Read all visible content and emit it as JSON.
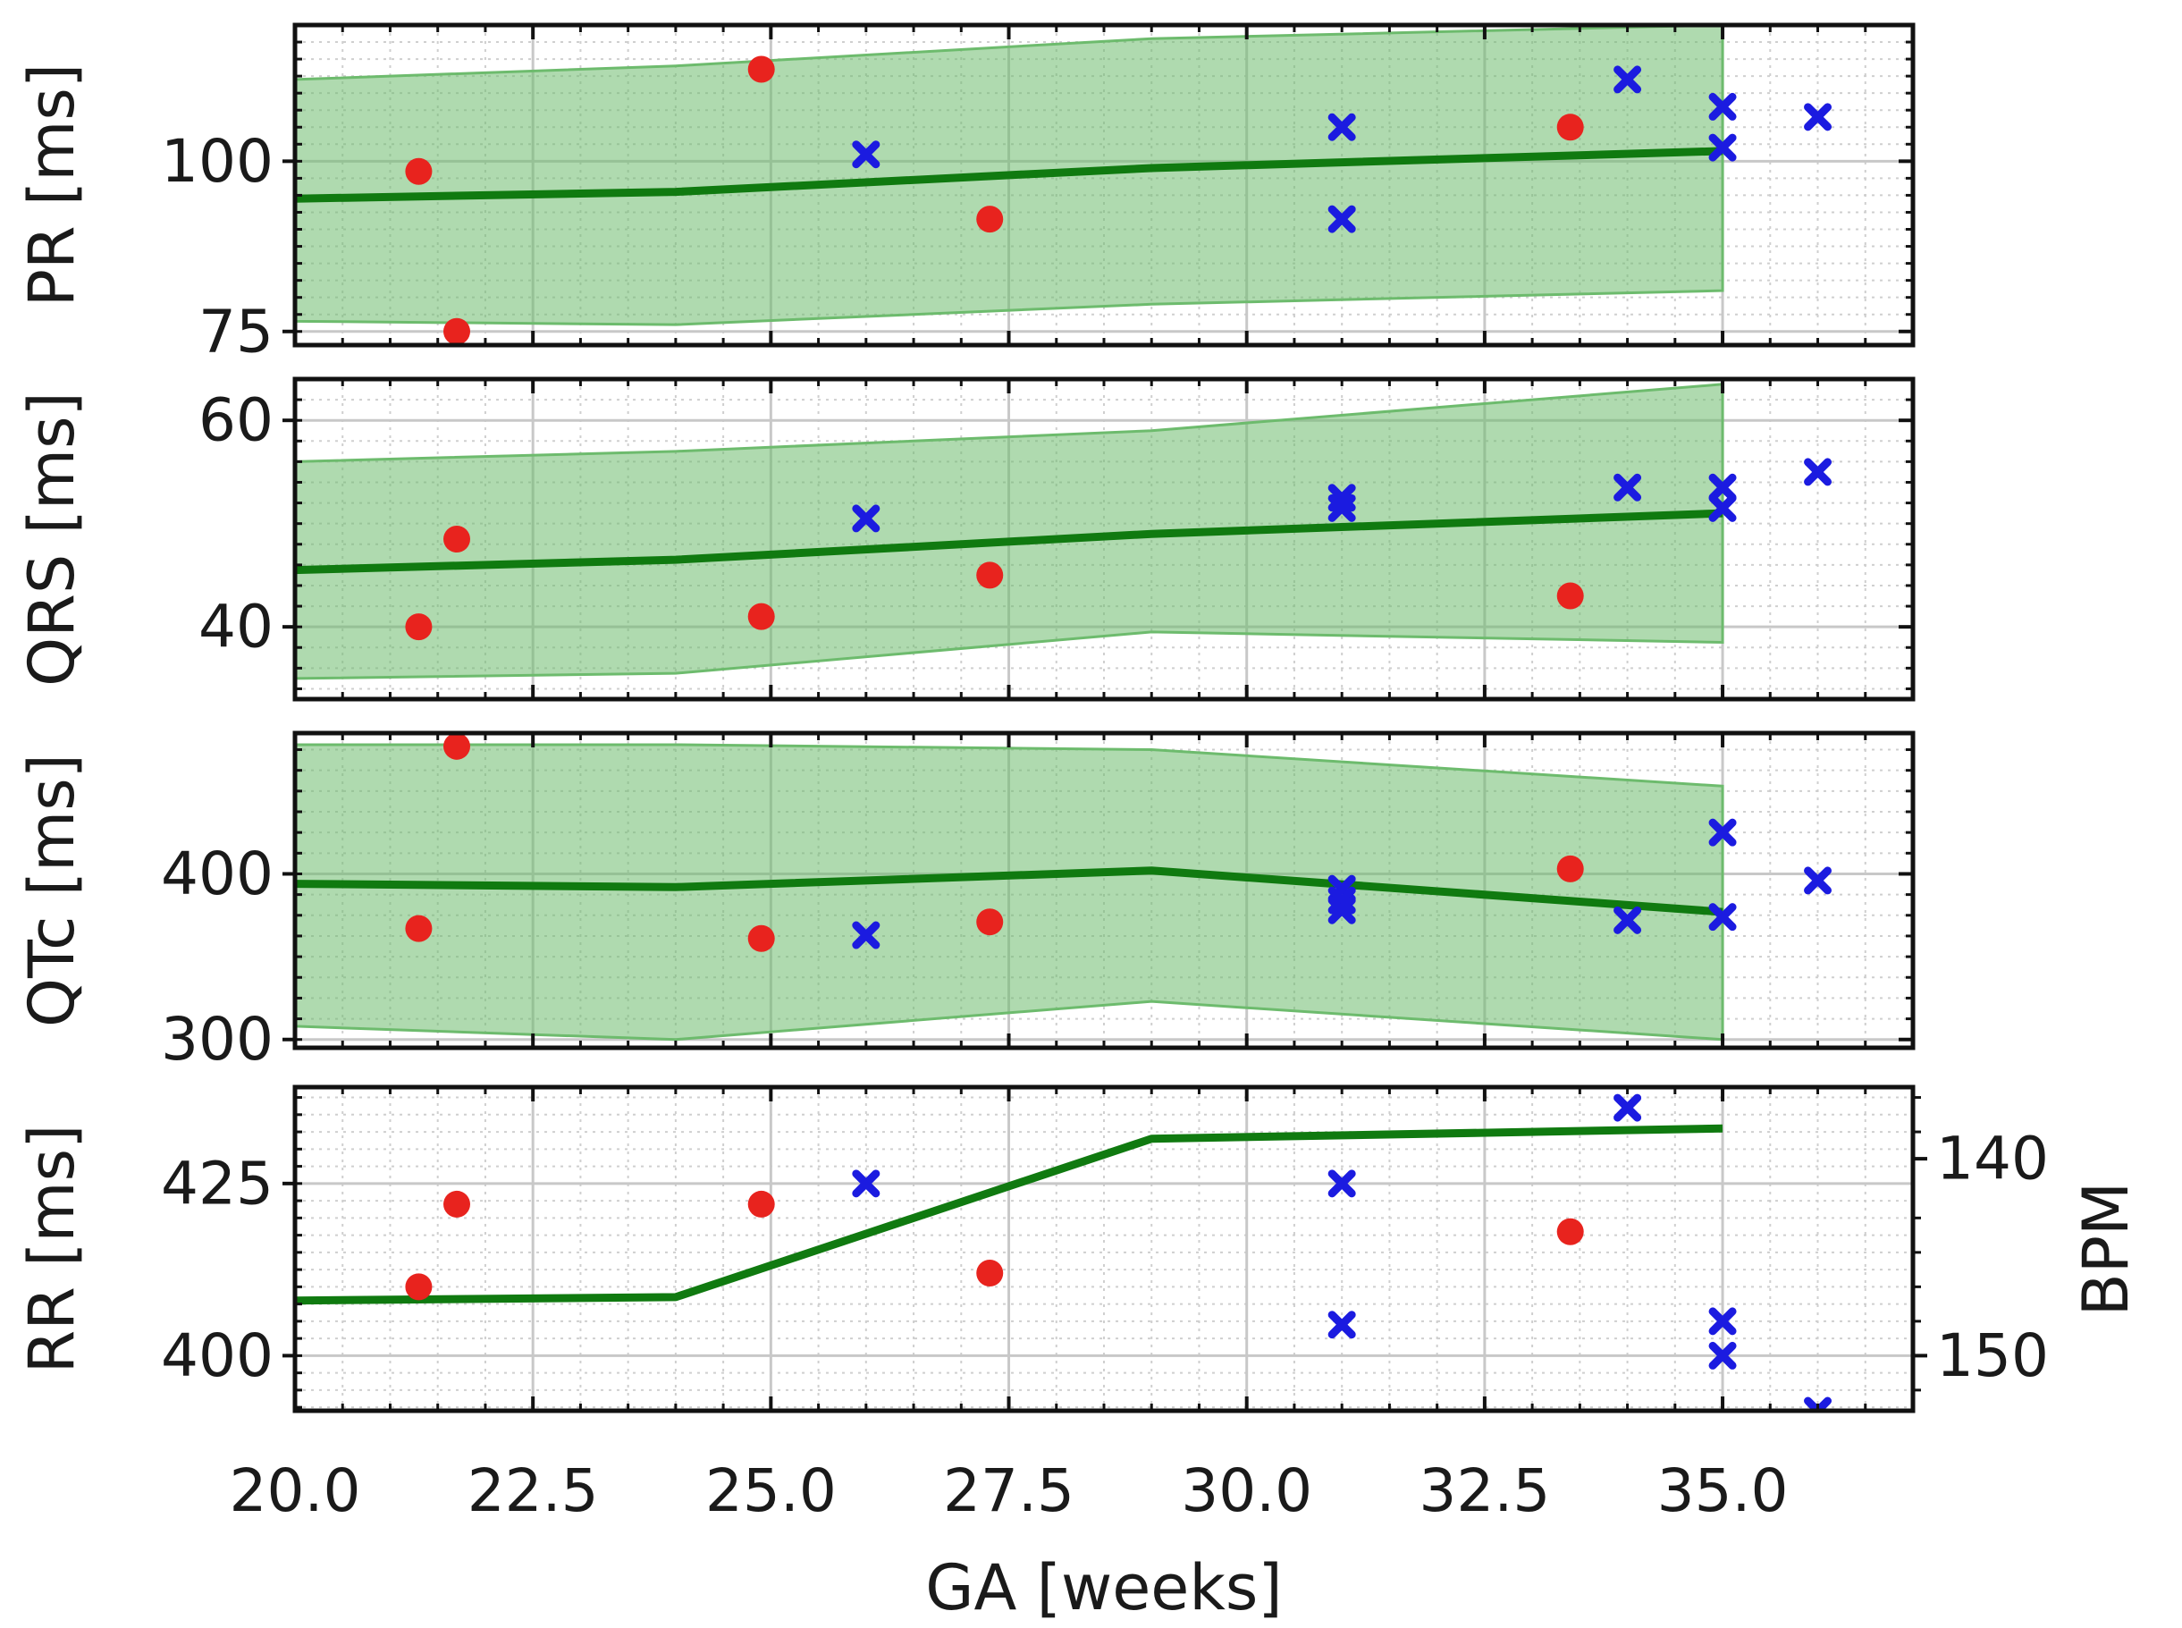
{
  "chart_data": {
    "type": "scatter",
    "colors": {
      "band": "#6dbb6d",
      "line": "#107a10",
      "dot": "#e8231e",
      "cross": "#1b1be0",
      "axis": "#111111",
      "grid_major": "#c8c8c8",
      "grid_minor": "#cfcfcf"
    },
    "x_label": "GA [weeks]",
    "xlim": [
      20,
      37
    ],
    "x_ticks": [
      20.0,
      22.5,
      25.0,
      27.5,
      30.0,
      32.5,
      35.0
    ],
    "x_tick_labels": [
      "20.0",
      "22.5",
      "25.0",
      "27.5",
      "30.0",
      "32.5",
      "35.0"
    ],
    "x_minor_step": 0.5,
    "panels": [
      {
        "id": "pr",
        "ylabel": "PR [ms]",
        "ylim": [
          73,
          120
        ],
        "yticks": [
          75,
          100
        ],
        "ytick_labels": [
          "75",
          "100"
        ],
        "y_minor_step": 2.5,
        "band": {
          "x": [
            20,
            24,
            29,
            35
          ],
          "lower": [
            76.5,
            76,
            79,
            81
          ],
          "upper": [
            112,
            114,
            118,
            120
          ]
        },
        "line": {
          "x": [
            20,
            24,
            29,
            35
          ],
          "y": [
            94.5,
            95.5,
            99,
            101.5
          ]
        },
        "dots": [
          [
            21.3,
            98.5
          ],
          [
            21.7,
            75
          ],
          [
            24.9,
            113.5
          ],
          [
            27.3,
            91.5
          ],
          [
            33.4,
            105
          ]
        ],
        "crosses": [
          [
            26.0,
            101
          ],
          [
            31.0,
            105
          ],
          [
            31.0,
            91.5
          ],
          [
            34.0,
            112
          ],
          [
            35.0,
            108
          ],
          [
            35.0,
            102
          ],
          [
            36.0,
            106.5
          ]
        ]
      },
      {
        "id": "qrs",
        "ylabel": "QRS [ms]",
        "ylim": [
          33,
          64
        ],
        "yticks": [
          40,
          60
        ],
        "ytick_labels": [
          "40",
          "60"
        ],
        "y_minor_step": 2,
        "band": {
          "x": [
            20,
            24,
            29,
            35
          ],
          "lower": [
            35,
            35.5,
            39.5,
            38.5
          ],
          "upper": [
            56,
            57,
            59,
            63.5
          ]
        },
        "line": {
          "x": [
            20,
            24,
            29,
            35
          ],
          "y": [
            45.5,
            46.5,
            49,
            51
          ]
        },
        "dots": [
          [
            21.3,
            40
          ],
          [
            21.7,
            48.5
          ],
          [
            24.9,
            41
          ],
          [
            27.3,
            45
          ],
          [
            33.4,
            43
          ]
        ],
        "crosses": [
          [
            26.0,
            50.5
          ],
          [
            31.0,
            52.5
          ],
          [
            31.0,
            51.5
          ],
          [
            34.0,
            53.5
          ],
          [
            35.0,
            53.5
          ],
          [
            35.0,
            51.5
          ],
          [
            36.0,
            55
          ]
        ]
      },
      {
        "id": "qtc",
        "ylabel": "QTc [ms]",
        "ylim": [
          295,
          485
        ],
        "yticks": [
          300,
          400
        ],
        "ytick_labels": [
          "300",
          "400"
        ],
        "y_minor_step": 12.5,
        "band": {
          "x": [
            20,
            24,
            29,
            35
          ],
          "lower": [
            308,
            300,
            323,
            300
          ],
          "upper": [
            478,
            478,
            475,
            453
          ]
        },
        "line": {
          "x": [
            20,
            24,
            29,
            35
          ],
          "y": [
            394,
            392,
            402,
            377
          ]
        },
        "dots": [
          [
            21.3,
            367
          ],
          [
            21.7,
            477
          ],
          [
            24.9,
            361
          ],
          [
            27.3,
            371
          ],
          [
            33.4,
            403
          ]
        ],
        "crosses": [
          [
            26.0,
            363
          ],
          [
            31.0,
            391
          ],
          [
            31.0,
            384
          ],
          [
            31.0,
            378
          ],
          [
            34.0,
            372
          ],
          [
            35.0,
            425
          ],
          [
            35.0,
            374
          ],
          [
            36.0,
            396
          ]
        ]
      },
      {
        "id": "rr",
        "ylabel": "RR [ms]",
        "ylim": [
          392,
          439
        ],
        "yticks": [
          400,
          425
        ],
        "ytick_labels": [
          "400",
          "425"
        ],
        "y_minor_step": 2.5,
        "band": null,
        "line": {
          "x": [
            20,
            24,
            29,
            35
          ],
          "y": [
            408,
            408.5,
            431.5,
            433
          ]
        },
        "dots": [
          [
            21.3,
            410
          ],
          [
            21.7,
            422
          ],
          [
            24.9,
            422
          ],
          [
            27.3,
            412
          ],
          [
            33.4,
            418
          ]
        ],
        "crosses": [
          [
            26.0,
            425
          ],
          [
            31.0,
            425
          ],
          [
            31.0,
            404.5
          ],
          [
            34.0,
            436
          ],
          [
            35.0,
            405
          ],
          [
            35.0,
            400
          ],
          [
            36.0,
            392
          ]
        ],
        "right_axis": {
          "ylabel": "BPM",
          "ticks": [
            140,
            150
          ],
          "tick_labels": [
            "140",
            "150"
          ],
          "tick_rr_ms": [
            428.6,
            400
          ],
          "minor_rr_ms": [
            395,
            405,
            410,
            415,
            420,
            432.5,
            437.5
          ]
        }
      }
    ]
  }
}
